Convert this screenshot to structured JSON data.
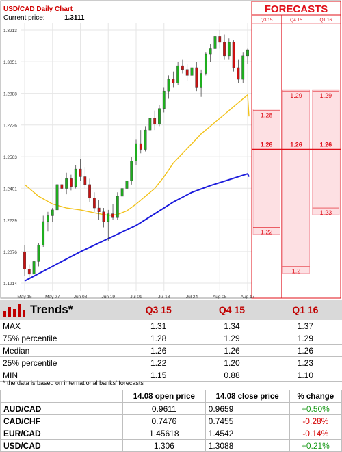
{
  "chart_data": {
    "type": "candlestick",
    "title": "USD/CAD Daily Chart",
    "current_price_label": "Current price:",
    "current_price": "1.3111",
    "y_ticks": [
      "1.3213",
      "1.3051",
      "1.2888",
      "1.2726",
      "1.2563",
      "1.2401",
      "1.2239",
      "1.2076",
      "1.1914"
    ],
    "ylim": [
      1.1914,
      1.3213
    ],
    "x_ticks": [
      "May 15",
      "May 27",
      "Jun 08",
      "Jun 19",
      "Jul 01",
      "Jul 13",
      "Jul 24",
      "Aug 05",
      "Aug 17"
    ],
    "candles": [
      {
        "o": 1.2075,
        "h": 1.211,
        "l": 1.195,
        "c": 1.1985
      },
      {
        "o": 1.1985,
        "h": 1.201,
        "l": 1.193,
        "c": 1.196
      },
      {
        "o": 1.196,
        "h": 1.204,
        "l": 1.194,
        "c": 1.2025
      },
      {
        "o": 1.2025,
        "h": 1.212,
        "l": 1.2,
        "c": 1.211
      },
      {
        "o": 1.211,
        "h": 1.226,
        "l": 1.21,
        "c": 1.223
      },
      {
        "o": 1.223,
        "h": 1.228,
        "l": 1.218,
        "c": 1.226
      },
      {
        "o": 1.226,
        "h": 1.23,
        "l": 1.223,
        "c": 1.229
      },
      {
        "o": 1.229,
        "h": 1.245,
        "l": 1.228,
        "c": 1.242
      },
      {
        "o": 1.242,
        "h": 1.246,
        "l": 1.238,
        "c": 1.24
      },
      {
        "o": 1.24,
        "h": 1.248,
        "l": 1.237,
        "c": 1.245
      },
      {
        "o": 1.245,
        "h": 1.247,
        "l": 1.239,
        "c": 1.241
      },
      {
        "o": 1.241,
        "h": 1.252,
        "l": 1.24,
        "c": 1.25
      },
      {
        "o": 1.25,
        "h": 1.255,
        "l": 1.244,
        "c": 1.246
      },
      {
        "o": 1.246,
        "h": 1.251,
        "l": 1.24,
        "c": 1.242
      },
      {
        "o": 1.242,
        "h": 1.245,
        "l": 1.233,
        "c": 1.235
      },
      {
        "o": 1.235,
        "h": 1.238,
        "l": 1.228,
        "c": 1.23
      },
      {
        "o": 1.23,
        "h": 1.234,
        "l": 1.224,
        "c": 1.228
      },
      {
        "o": 1.228,
        "h": 1.23,
        "l": 1.22,
        "c": 1.223
      },
      {
        "o": 1.223,
        "h": 1.229,
        "l": 1.213,
        "c": 1.227
      },
      {
        "o": 1.227,
        "h": 1.232,
        "l": 1.224,
        "c": 1.225
      },
      {
        "o": 1.225,
        "h": 1.238,
        "l": 1.224,
        "c": 1.236
      },
      {
        "o": 1.236,
        "h": 1.242,
        "l": 1.233,
        "c": 1.24
      },
      {
        "o": 1.24,
        "h": 1.246,
        "l": 1.238,
        "c": 1.244
      },
      {
        "o": 1.244,
        "h": 1.256,
        "l": 1.242,
        "c": 1.254
      },
      {
        "o": 1.254,
        "h": 1.265,
        "l": 1.252,
        "c": 1.263
      },
      {
        "o": 1.263,
        "h": 1.27,
        "l": 1.258,
        "c": 1.26
      },
      {
        "o": 1.26,
        "h": 1.272,
        "l": 1.259,
        "c": 1.27
      },
      {
        "o": 1.27,
        "h": 1.278,
        "l": 1.266,
        "c": 1.276
      },
      {
        "o": 1.276,
        "h": 1.28,
        "l": 1.27,
        "c": 1.273
      },
      {
        "o": 1.273,
        "h": 1.283,
        "l": 1.272,
        "c": 1.281
      },
      {
        "o": 1.281,
        "h": 1.292,
        "l": 1.279,
        "c": 1.29
      },
      {
        "o": 1.29,
        "h": 1.298,
        "l": 1.286,
        "c": 1.296
      },
      {
        "o": 1.296,
        "h": 1.3,
        "l": 1.292,
        "c": 1.294
      },
      {
        "o": 1.294,
        "h": 1.305,
        "l": 1.293,
        "c": 1.303
      },
      {
        "o": 1.303,
        "h": 1.306,
        "l": 1.299,
        "c": 1.301
      },
      {
        "o": 1.301,
        "h": 1.304,
        "l": 1.295,
        "c": 1.298
      },
      {
        "o": 1.298,
        "h": 1.303,
        "l": 1.295,
        "c": 1.302
      },
      {
        "o": 1.302,
        "h": 1.305,
        "l": 1.29,
        "c": 1.292
      },
      {
        "o": 1.292,
        "h": 1.301,
        "l": 1.287,
        "c": 1.299
      },
      {
        "o": 1.299,
        "h": 1.31,
        "l": 1.298,
        "c": 1.309
      },
      {
        "o": 1.309,
        "h": 1.314,
        "l": 1.305,
        "c": 1.312
      },
      {
        "o": 1.312,
        "h": 1.32,
        "l": 1.31,
        "c": 1.318
      },
      {
        "o": 1.318,
        "h": 1.3213,
        "l": 1.312,
        "c": 1.315
      },
      {
        "o": 1.315,
        "h": 1.319,
        "l": 1.306,
        "c": 1.308
      },
      {
        "o": 1.308,
        "h": 1.317,
        "l": 1.306,
        "c": 1.315
      },
      {
        "o": 1.315,
        "h": 1.316,
        "l": 1.3,
        "c": 1.302
      },
      {
        "o": 1.302,
        "h": 1.306,
        "l": 1.294,
        "c": 1.296
      },
      {
        "o": 1.296,
        "h": 1.31,
        "l": 1.294,
        "c": 1.308
      },
      {
        "o": 1.308,
        "h": 1.312,
        "l": 1.304,
        "c": 1.3111
      }
    ],
    "ma_fast": [
      [
        0,
        1.242
      ],
      [
        3,
        1.236
      ],
      [
        6,
        1.232
      ],
      [
        9,
        1.23
      ],
      [
        12,
        1.229
      ],
      [
        15,
        1.2275
      ],
      [
        18,
        1.2262
      ],
      [
        20,
        1.2266
      ],
      [
        22,
        1.2285
      ],
      [
        24,
        1.232
      ],
      [
        26,
        1.236
      ],
      [
        28,
        1.24
      ],
      [
        30,
        1.246
      ],
      [
        32,
        1.253
      ],
      [
        34,
        1.258
      ],
      [
        36,
        1.263
      ],
      [
        38,
        1.268
      ],
      [
        40,
        1.272
      ],
      [
        42,
        1.276
      ],
      [
        44,
        1.28
      ],
      [
        46,
        1.284
      ],
      [
        48,
        1.288
      ]
    ],
    "ma_slow": [
      [
        0,
        1.1925
      ],
      [
        4,
        1.1975
      ],
      [
        8,
        1.2025
      ],
      [
        12,
        1.2075
      ],
      [
        16,
        1.212
      ],
      [
        20,
        1.2165
      ],
      [
        24,
        1.221
      ],
      [
        28,
        1.227
      ],
      [
        32,
        1.233
      ],
      [
        36,
        1.238
      ],
      [
        40,
        1.2415
      ],
      [
        44,
        1.2445
      ],
      [
        48,
        1.2475
      ]
    ],
    "colors": {
      "up": "#1fae1f",
      "down": "#cc1111",
      "ma_fast": "#f2c21a",
      "ma_slow": "#1a1adc",
      "forecast": "#e0101a"
    }
  },
  "forecasts": {
    "title": "FORECASTS",
    "columns": [
      "Q3 15",
      "Q4 15",
      "Q1 16"
    ],
    "labels": [
      {
        "col": 0,
        "value": 1.28,
        "text": "1.28"
      },
      {
        "col": 0,
        "value": 1.22,
        "text": "1.22"
      },
      {
        "col": 1,
        "value": 1.29,
        "text": "1.29"
      },
      {
        "col": 1,
        "value": 1.2,
        "text": "1.2"
      },
      {
        "col": 2,
        "value": 1.29,
        "text": "1.29"
      },
      {
        "col": 2,
        "value": 1.23,
        "text": "1.23"
      }
    ],
    "median": {
      "value": 1.26,
      "texts": [
        "1.26",
        "1.26",
        "1.26"
      ]
    }
  },
  "trends": {
    "title": "Trends*",
    "headers": [
      "Q3 15",
      "Q4 15",
      "Q1 16"
    ],
    "rows": [
      {
        "label": "MAX",
        "values": [
          "1.31",
          "1.34",
          "1.37"
        ]
      },
      {
        "label": "75% percentile",
        "values": [
          "1.28",
          "1.29",
          "1.29"
        ]
      },
      {
        "label": "Median",
        "values": [
          "1.26",
          "1.26",
          "1.26"
        ]
      },
      {
        "label": "25% percentile",
        "values": [
          "1.22",
          "1.20",
          "1.23"
        ]
      },
      {
        "label": "MIN",
        "values": [
          "1.15",
          "0.88",
          "1.10"
        ]
      }
    ],
    "note": "* the data is based on international banks' forecasts"
  },
  "prices": {
    "headers": [
      "14.08 open price",
      "14.08 close price",
      "% change"
    ],
    "rows": [
      {
        "pair": "AUD/CAD",
        "open": "0.9611",
        "close": "0.9659",
        "change": "+0.50%",
        "dir": "pos"
      },
      {
        "pair": "CAD/CHF",
        "open": "0.7476",
        "close": "0.7455",
        "change": "-0.28%",
        "dir": "neg"
      },
      {
        "pair": "EUR/CAD",
        "open": "1.45618",
        "close": "1.4542",
        "change": "-0.14%",
        "dir": "neg"
      },
      {
        "pair": "USD/CAD",
        "open": "1.306",
        "close": "1.3088",
        "change": "+0.21%",
        "dir": "pos"
      }
    ]
  }
}
